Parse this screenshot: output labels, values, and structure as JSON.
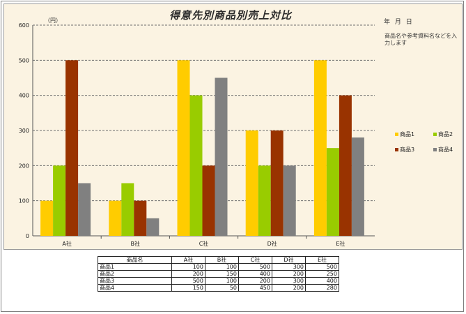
{
  "chart_data": {
    "type": "bar",
    "title": "得意先別商品別売上対比",
    "unit_label": "（円）",
    "categories": [
      "A社",
      "B社",
      "C社",
      "D社",
      "E社"
    ],
    "series": [
      {
        "name": "商品1",
        "color": "#ffcc00",
        "values": [
          100,
          100,
          500,
          300,
          500
        ]
      },
      {
        "name": "商品2",
        "color": "#99cc00",
        "values": [
          200,
          150,
          400,
          200,
          250
        ]
      },
      {
        "name": "商品3",
        "color": "#993300",
        "values": [
          500,
          100,
          200,
          300,
          400
        ]
      },
      {
        "name": "商品4",
        "color": "#808080",
        "values": [
          150,
          50,
          450,
          200,
          280
        ]
      }
    ],
    "ylim": [
      0,
      600
    ],
    "yticks": [
      0,
      100,
      200,
      300,
      400,
      500,
      600
    ],
    "grid": true,
    "legend_position": "right"
  },
  "side": {
    "date_label": "年 月 日",
    "note_line1": "商品名や参考資料名などを入力します"
  },
  "table": {
    "header": [
      "商品名",
      "A社",
      "B社",
      "C社",
      "D社",
      "E社"
    ],
    "rows": [
      [
        "商品1",
        "100",
        "100",
        "500",
        "300",
        "500"
      ],
      [
        "商品2",
        "200",
        "150",
        "400",
        "200",
        "250"
      ],
      [
        "商品3",
        "500",
        "100",
        "200",
        "300",
        "400"
      ],
      [
        "商品4",
        "150",
        "50",
        "450",
        "200",
        "280"
      ]
    ]
  }
}
